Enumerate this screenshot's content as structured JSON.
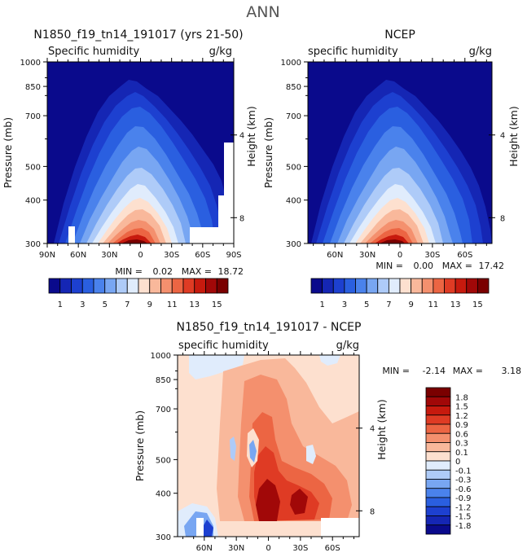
{
  "page_title": "ANN",
  "chart_data": [
    {
      "type": "heatmap",
      "title": "N1850_f19_tn14_191017 (yrs 21-50)",
      "subtitle": "Specific humidity",
      "units": "g/kg",
      "ylabel": "Pressure (mb)",
      "ylabel_right": "Height (km)",
      "y_ticks": [
        "300",
        "400",
        "500",
        "700",
        "850",
        "1000"
      ],
      "y_right_ticks": [
        "8",
        "4"
      ],
      "x_ticks": [
        "90N",
        "60N",
        "30N",
        "0",
        "30S",
        "60S",
        "90S"
      ],
      "min_label": "MIN =",
      "min_value": "0.02",
      "max_label": "MAX =",
      "max_value": "18.72",
      "colorbar_labels": [
        "1",
        "3",
        "5",
        "7",
        "9",
        "11",
        "13",
        "15"
      ],
      "colorbar_colors": [
        "#0a0a8c",
        "#1526b4",
        "#1d40d0",
        "#2a5fe0",
        "#4a82ec",
        "#78a6f2",
        "#aecbf8",
        "#e0ecfc",
        "#fde0cf",
        "#f9b89b",
        "#f4906e",
        "#ec6543",
        "#df3b24",
        "#c71a0e",
        "#a10808",
        "#7a0000"
      ],
      "peak_value": 18.72
    },
    {
      "type": "heatmap",
      "title": "NCEP",
      "subtitle": "specific humidity",
      "units": "g/kg",
      "ylabel": "Pressure (mb)",
      "ylabel_right": "Height (km)",
      "y_ticks": [
        "300",
        "400",
        "500",
        "700",
        "850",
        "1000"
      ],
      "y_right_ticks": [
        "8",
        "4"
      ],
      "x_ticks": [
        "60N",
        "30N",
        "0",
        "30S",
        "60S"
      ],
      "min_label": "MIN =",
      "min_value": "0.00",
      "max_label": "MAX =",
      "max_value": "17.42",
      "colorbar_labels": [
        "1",
        "3",
        "5",
        "7",
        "9",
        "11",
        "13",
        "15"
      ],
      "colorbar_colors": [
        "#0a0a8c",
        "#1526b4",
        "#1d40d0",
        "#2a5fe0",
        "#4a82ec",
        "#78a6f2",
        "#aecbf8",
        "#e0ecfc",
        "#fde0cf",
        "#f9b89b",
        "#f4906e",
        "#ec6543",
        "#df3b24",
        "#c71a0e",
        "#a10808",
        "#7a0000"
      ],
      "peak_value": 17.42
    },
    {
      "type": "heatmap",
      "title": "N1850_f19_tn14_191017 - NCEP",
      "subtitle": "specific humidity",
      "units": "g/kg",
      "ylabel": "Pressure (mb)",
      "ylabel_right": "Height (km)",
      "y_ticks": [
        "300",
        "400",
        "500",
        "700",
        "850",
        "1000"
      ],
      "y_right_ticks": [
        "8",
        "4"
      ],
      "x_ticks": [
        "60N",
        "30N",
        "0",
        "30S",
        "60S"
      ],
      "min_label": "MIN =",
      "min_value": "-2.14",
      "max_label": "MAX =",
      "max_value": "3.18",
      "colorbar_labels": [
        "1.8",
        "1.5",
        "1.2",
        "0.9",
        "0.6",
        "0.3",
        "0.1",
        "0",
        "-0.1",
        "-0.3",
        "-0.6",
        "-0.9",
        "-1.2",
        "-1.5",
        "-1.8"
      ],
      "colorbar_colors": [
        "#7a0000",
        "#a10808",
        "#c71a0e",
        "#df3b24",
        "#ec6543",
        "#f4906e",
        "#f9b89b",
        "#fde0cf",
        "#e0ecfc",
        "#aecbf8",
        "#78a6f2",
        "#4a82ec",
        "#2a5fe0",
        "#1d40d0",
        "#1526b4",
        "#0a0a8c"
      ]
    }
  ]
}
